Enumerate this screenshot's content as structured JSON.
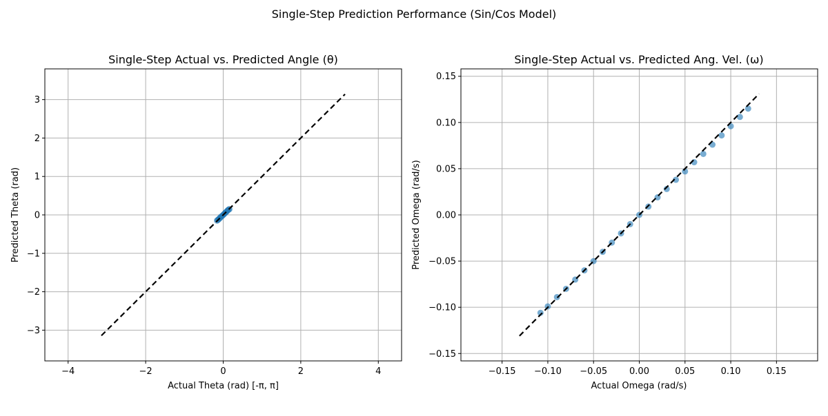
{
  "figure": {
    "suptitle": "Single-Step Prediction Performance (Sin/Cos Model)"
  },
  "chart_data": [
    {
      "type": "scatter",
      "title": "Single-Step Actual vs. Predicted Angle (θ)",
      "xlabel": "Actual Theta (rad) [-π, π]",
      "ylabel": "Predicted Theta (rad)",
      "xlim": [
        -4.6,
        4.6
      ],
      "ylim": [
        -3.8,
        3.8
      ],
      "xticks": [
        -4,
        -2,
        0,
        2,
        4
      ],
      "xtick_labels": [
        "−4",
        "−2",
        "0",
        "2",
        "4"
      ],
      "yticks": [
        -3,
        -2,
        -1,
        0,
        1,
        2,
        3
      ],
      "ytick_labels": [
        "−3",
        "−2",
        "−1",
        "0",
        "1",
        "2",
        "3"
      ],
      "grid": true,
      "scatter_color": "#1f77b4",
      "reference_line": {
        "style": "dashed",
        "color": "#000000",
        "x": [
          -3.14159,
          3.14159
        ],
        "y": [
          -3.14159,
          3.14159
        ]
      },
      "points": [
        [
          -0.16,
          -0.15
        ],
        [
          -0.14,
          -0.13
        ],
        [
          -0.12,
          -0.12
        ],
        [
          -0.1,
          -0.09
        ],
        [
          -0.08,
          -0.08
        ],
        [
          -0.06,
          -0.05
        ],
        [
          -0.04,
          -0.04
        ],
        [
          -0.02,
          -0.02
        ],
        [
          0.0,
          0.0
        ],
        [
          0.02,
          0.02
        ],
        [
          0.04,
          0.04
        ],
        [
          0.06,
          0.06
        ],
        [
          0.08,
          0.08
        ],
        [
          0.1,
          0.1
        ],
        [
          0.12,
          0.12
        ],
        [
          0.14,
          0.14
        ],
        [
          0.16,
          0.15
        ]
      ]
    },
    {
      "type": "scatter",
      "title": "Single-Step Actual vs. Predicted Ang. Vel. (ω)",
      "xlabel": "Actual Omega (rad/s)",
      "ylabel": "Predicted Omega (rad/s)",
      "xlim": [
        -0.195,
        0.195
      ],
      "ylim": [
        -0.158,
        0.158
      ],
      "xticks": [
        -0.15,
        -0.1,
        -0.05,
        0.0,
        0.05,
        0.1,
        0.15
      ],
      "xtick_labels": [
        "−0.15",
        "−0.10",
        "−0.05",
        "0.00",
        "0.05",
        "0.10",
        "0.15"
      ],
      "yticks": [
        -0.15,
        -0.1,
        -0.05,
        0.0,
        0.05,
        0.1,
        0.15
      ],
      "ytick_labels": [
        "−0.15",
        "−0.10",
        "−0.05",
        "0.00",
        "0.05",
        "0.10",
        "0.15"
      ],
      "grid": true,
      "scatter_color": "#1f77b4",
      "reference_line": {
        "style": "dashed",
        "color": "#000000",
        "x": [
          -0.131,
          0.131
        ],
        "y": [
          -0.131,
          0.131
        ]
      },
      "points": [
        [
          -0.108,
          -0.106
        ],
        [
          -0.1,
          -0.099
        ],
        [
          -0.09,
          -0.089
        ],
        [
          -0.08,
          -0.08
        ],
        [
          -0.07,
          -0.07
        ],
        [
          -0.06,
          -0.06
        ],
        [
          -0.05,
          -0.05
        ],
        [
          -0.04,
          -0.04
        ],
        [
          -0.03,
          -0.03
        ],
        [
          -0.02,
          -0.02
        ],
        [
          -0.01,
          -0.01
        ],
        [
          0.0,
          0.0
        ],
        [
          0.01,
          0.009
        ],
        [
          0.02,
          0.019
        ],
        [
          0.03,
          0.028
        ],
        [
          0.04,
          0.038
        ],
        [
          0.05,
          0.047
        ],
        [
          0.06,
          0.057
        ],
        [
          0.07,
          0.066
        ],
        [
          0.08,
          0.076
        ],
        [
          0.09,
          0.086
        ],
        [
          0.1,
          0.096
        ],
        [
          0.11,
          0.106
        ],
        [
          0.119,
          0.115
        ]
      ]
    }
  ]
}
